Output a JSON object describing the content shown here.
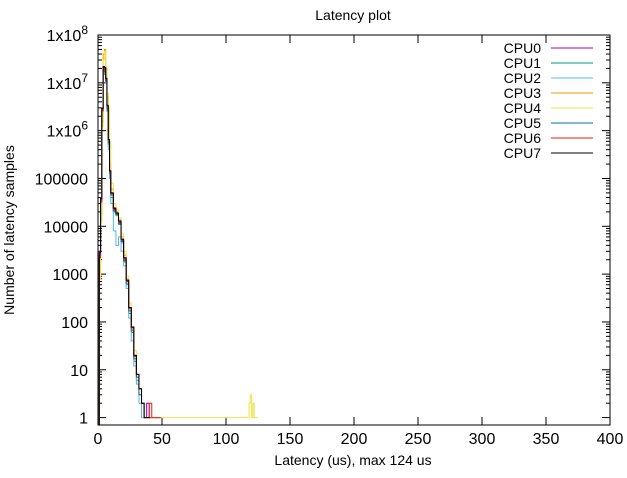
{
  "chart_data": {
    "type": "line",
    "title": "Latency plot",
    "xlabel": "Latency (us), max 124 us",
    "ylabel": "Number of latency samples",
    "xlim": [
      0,
      400
    ],
    "ylim": [
      0.7,
      100000000
    ],
    "yscale": "log",
    "grid": false,
    "legend_position": "top-right",
    "x_ticks": [
      0,
      50,
      100,
      150,
      200,
      250,
      300,
      350,
      400
    ],
    "x_tick_labels": [
      "0",
      "50",
      "100",
      "150",
      "200",
      "250",
      "300",
      "350",
      "400"
    ],
    "y_ticks": [
      1,
      10,
      100,
      1000,
      10000,
      100000,
      1000000,
      10000000,
      100000000
    ],
    "y_tick_labels": [
      {
        "base": "1",
        "sup": ""
      },
      {
        "base": "10",
        "sup": ""
      },
      {
        "base": "100",
        "sup": ""
      },
      {
        "base": "1000",
        "sup": ""
      },
      {
        "base": "10000",
        "sup": ""
      },
      {
        "base": "100000",
        "sup": ""
      },
      {
        "base": "1x10",
        "sup": "6"
      },
      {
        "base": "1x10",
        "sup": "7"
      },
      {
        "base": "1x10",
        "sup": "8"
      }
    ],
    "series": [
      {
        "name": "CPU0",
        "color": "#9400d3",
        "x": [
          1,
          2,
          3,
          4,
          5,
          6,
          7,
          8,
          9,
          10,
          12,
          14,
          16,
          18,
          20,
          22,
          24,
          26,
          28,
          30,
          32,
          34,
          36,
          38,
          40,
          42,
          45,
          50
        ],
        "y": [
          3000,
          40000,
          3000000,
          20000000,
          15000000,
          10000000,
          3000000,
          600000,
          150000,
          50000,
          22000,
          18000,
          12000,
          5000,
          2000,
          700,
          200,
          80,
          20,
          8,
          4,
          2,
          1,
          2,
          1,
          1,
          1,
          1
        ]
      },
      {
        "name": "CPU1",
        "color": "#009e73",
        "x": [
          1,
          2,
          3,
          4,
          5,
          6,
          7,
          8,
          9,
          10,
          12,
          14,
          16,
          18,
          20,
          22,
          24,
          26,
          28,
          30,
          32,
          34,
          36,
          38,
          40
        ],
        "y": [
          2000,
          30000,
          2500000,
          18000000,
          20000000,
          12000000,
          3000000,
          500000,
          120000,
          40000,
          20000,
          17000,
          11000,
          4500,
          1800,
          600,
          150,
          60,
          15,
          6,
          3,
          2,
          1,
          1,
          1
        ]
      },
      {
        "name": "CPU2",
        "color": "#56b4e9",
        "x": [
          1,
          2,
          3,
          4,
          5,
          6,
          7,
          8,
          9,
          10,
          12,
          14,
          16,
          18,
          20,
          22,
          24,
          26,
          28,
          30,
          32,
          34
        ],
        "y": [
          1500,
          20000,
          2000000,
          15000000,
          18000000,
          10000000,
          2500000,
          400000,
          100000,
          30000,
          8000,
          4000,
          6000,
          3000,
          1500,
          500,
          120,
          40,
          12,
          5,
          2,
          1
        ]
      },
      {
        "name": "CPU3",
        "color": "#e69f00",
        "x": [
          1,
          2,
          3,
          4,
          5,
          6,
          7,
          8,
          9,
          10,
          12,
          14,
          16,
          18,
          20,
          22,
          24,
          26,
          28,
          30,
          32,
          34,
          36,
          40,
          45,
          50
        ],
        "y": [
          1000,
          15000,
          1500000,
          40000000,
          50000000,
          20000000,
          5000000,
          800000,
          200000,
          60000,
          25000,
          20000,
          14000,
          6000,
          2500,
          800,
          200,
          70,
          20,
          7,
          3,
          2,
          1,
          1,
          1,
          1
        ]
      },
      {
        "name": "CPU4",
        "color": "#f0e442",
        "x": [
          1,
          2,
          3,
          4,
          5,
          6,
          7,
          8,
          9,
          10,
          12,
          14,
          16,
          18,
          20,
          22,
          24,
          26,
          28,
          30,
          32,
          34,
          36,
          40,
          45,
          50,
          65,
          70,
          80,
          95,
          110,
          117,
          118,
          119,
          120,
          121,
          122,
          124
        ],
        "y": [
          800,
          12000,
          1200000,
          30000000,
          45000000,
          18000000,
          6000000,
          3000000,
          600000,
          80000,
          30000,
          22000,
          15000,
          7000,
          3000,
          900,
          250,
          80,
          25,
          8,
          3,
          2,
          1,
          1,
          1,
          1,
          1,
          1,
          1,
          1,
          1,
          1,
          2,
          3,
          1,
          2,
          1,
          1
        ]
      },
      {
        "name": "CPU5",
        "color": "#0072b2",
        "x": [
          1,
          2,
          3,
          4,
          5,
          6,
          7,
          8,
          9,
          10,
          12,
          14,
          16,
          18,
          20,
          22,
          24,
          26,
          28,
          30,
          32,
          34,
          36
        ],
        "y": [
          2500,
          35000,
          2800000,
          19000000,
          17000000,
          11000000,
          2800000,
          550000,
          130000,
          45000,
          21000,
          17500,
          11500,
          4800,
          1900,
          650,
          170,
          65,
          17,
          7,
          3,
          2,
          1
        ]
      },
      {
        "name": "CPU6",
        "color": "#e51e10",
        "x": [
          1,
          2,
          3,
          4,
          5,
          6,
          7,
          8,
          9,
          10,
          12,
          14,
          16,
          18,
          20,
          22,
          24,
          26,
          28,
          30,
          32,
          34,
          36,
          38,
          40,
          42,
          45,
          48
        ],
        "y": [
          2200,
          32000,
          2600000,
          21000000,
          19000000,
          11500000,
          3200000,
          620000,
          140000,
          48000,
          23000,
          18500,
          12500,
          5200,
          2100,
          720,
          190,
          75,
          19,
          8,
          4,
          2,
          1,
          1,
          2,
          1,
          1,
          1
        ]
      },
      {
        "name": "CPU7",
        "color": "#000000",
        "x": [
          1,
          2,
          3,
          4,
          5,
          6,
          7,
          8,
          9,
          10,
          12,
          14,
          16,
          18,
          20,
          22,
          24,
          26,
          28,
          30,
          32,
          34,
          36,
          38,
          40
        ],
        "y": [
          2800,
          38000,
          2900000,
          22000000,
          21000000,
          12500000,
          3400000,
          650000,
          145000,
          50000,
          24000,
          19000,
          13000,
          5400,
          2200,
          750,
          200,
          78,
          20,
          8,
          4,
          2,
          1,
          1,
          1
        ]
      }
    ]
  }
}
